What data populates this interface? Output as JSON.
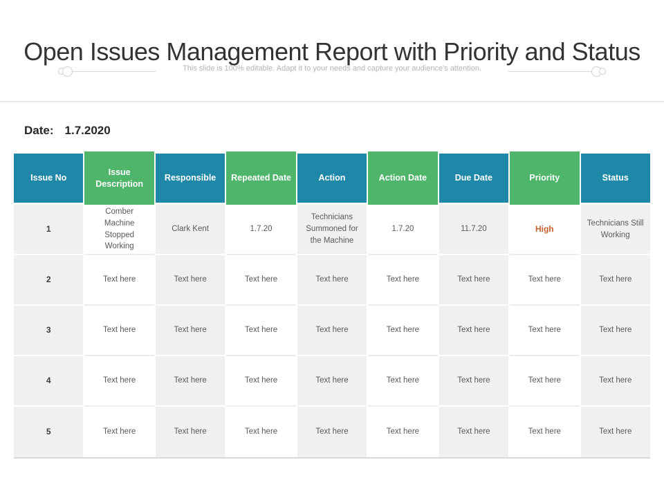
{
  "page": {
    "title": "Open Issues Management Report with Priority and Status",
    "subtitle": "This slide is 100% editable. Adapt it to your needs and capture your audience's attention.",
    "date_label": "Date:",
    "date_value": "1.7.2020"
  },
  "colors": {
    "header_teal": "#1f87a8",
    "header_green": "#4fb56a",
    "priority_high": "#c8602e",
    "row_gray": "#f0f0f0"
  },
  "table": {
    "headers": [
      "Issue No",
      "Issue Description",
      "Responsible",
      "Repeated Date",
      "Action",
      "Action Date",
      "Due Date",
      "Priority",
      "Status"
    ],
    "rows": [
      [
        "1",
        "Comber Machine Stopped Working",
        "Clark Kent",
        "1.7.20",
        "Technicians Summoned for the Machine",
        "1.7.20",
        "11.7.20",
        "High",
        "Technicians Still Working"
      ],
      [
        "2",
        "Text here",
        "Text here",
        "Text here",
        "Text here",
        "Text here",
        "Text here",
        "Text here",
        "Text here"
      ],
      [
        "3",
        "Text here",
        "Text here",
        "Text here",
        "Text here",
        "Text here",
        "Text here",
        "Text here",
        "Text here"
      ],
      [
        "4",
        "Text here",
        "Text here",
        "Text here",
        "Text here",
        "Text here",
        "Text here",
        "Text here",
        "Text here"
      ],
      [
        "5",
        "Text here",
        "Text here",
        "Text here",
        "Text here",
        "Text here",
        "Text here",
        "Text here",
        "Text here"
      ]
    ]
  }
}
